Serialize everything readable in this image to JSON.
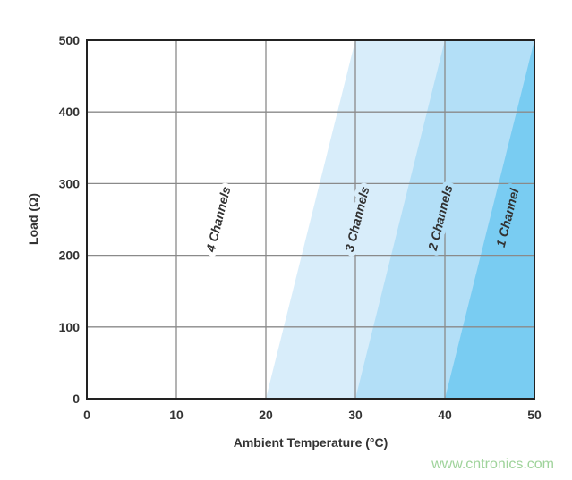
{
  "chart_data": {
    "type": "area",
    "title": "",
    "xlabel": "Ambient Temperature (°C)",
    "ylabel": "Load (Ω)",
    "xlim": [
      0,
      50
    ],
    "ylim": [
      0,
      500
    ],
    "xticks": [
      0,
      10,
      20,
      30,
      40,
      50
    ],
    "yticks": [
      0,
      100,
      200,
      300,
      400,
      500
    ],
    "grid": true,
    "regions": [
      {
        "name": "4 Channels",
        "color": "#ffffff",
        "boundary_right": [
          [
            20,
            0
          ],
          [
            30,
            500
          ]
        ],
        "label_at": [
          14.8,
          250
        ]
      },
      {
        "name": "3 Channels",
        "color": "#d8edfa",
        "boundary_right": [
          [
            30,
            0
          ],
          [
            40,
            500
          ]
        ],
        "label_at": [
          30.3,
          250
        ]
      },
      {
        "name": "2 Channels",
        "color": "#b3dff7",
        "boundary_right": [
          [
            40,
            0
          ],
          [
            50,
            500
          ]
        ],
        "label_at": [
          39.6,
          252
        ]
      },
      {
        "name": "1 Channel",
        "color": "#79ccf2",
        "boundary_right": [
          [
            50,
            0
          ],
          [
            50,
            500
          ]
        ],
        "label_at": [
          47.1,
          252
        ]
      }
    ]
  },
  "watermark": "www.cntronics.com"
}
